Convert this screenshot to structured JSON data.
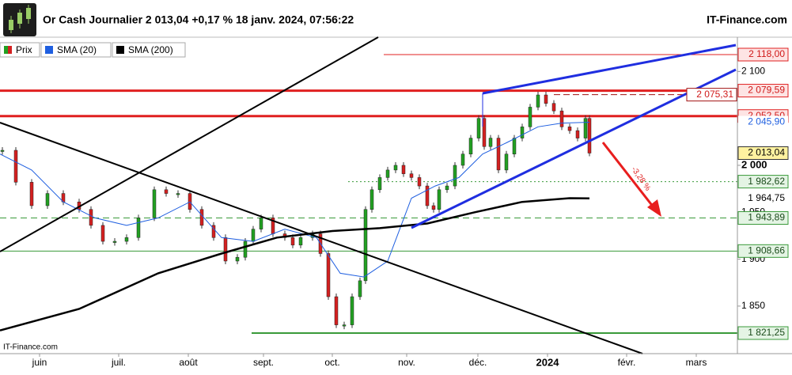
{
  "chart_data": {
    "type": "candlestick",
    "title": "Or Cash Journalier 2 013,04 +0,17 % 18 janv. 2024, 07:56:22",
    "site": "IT-Finance.com",
    "watermark": "IT-Finance.com",
    "annotation": "-3,28 %",
    "xlim": [
      0,
      233
    ],
    "ylim": [
      1799.33,
      2136.55
    ],
    "xticks": [
      {
        "value": 12.5,
        "label": "juin"
      },
      {
        "value": 37.5,
        "label": "juil."
      },
      {
        "value": 59.5,
        "label": "août"
      },
      {
        "value": 83.25,
        "label": "sept."
      },
      {
        "value": 105,
        "label": "oct."
      },
      {
        "value": 128.5,
        "label": "nov."
      },
      {
        "value": 151,
        "label": "déc."
      },
      {
        "value": 173,
        "label": "2024"
      },
      {
        "value": 198,
        "label": "févr."
      },
      {
        "value": 220,
        "label": "mars"
      }
    ],
    "yticks": [
      {
        "value": 2100,
        "label": "2 100"
      },
      {
        "value": 2000,
        "label": "2 000"
      },
      {
        "value": 1950,
        "label": "1 950"
      },
      {
        "value": 1900,
        "label": "1 900"
      },
      {
        "value": 1850,
        "label": "1 850"
      }
    ],
    "series": [
      {
        "name": "Prix",
        "color": "#22a022",
        "down_color": "#d42020",
        "last_label": "2 013,04",
        "x": [
          0.75,
          5,
          10,
          15,
          20,
          25,
          28.75,
          32.5,
          36.25,
          40,
          43.75,
          48.75,
          52.5,
          56.25,
          60,
          63.75,
          67.5,
          71.25,
          75,
          77.5,
          80,
          82.5,
          86.25,
          90,
          92.5,
          95,
          98.75,
          101.25,
          103.75,
          106.25,
          108.75,
          111.25,
          113.75,
          115.5,
          117.5,
          120,
          122.5,
          125,
          127.5,
          130,
          132.5,
          135,
          137,
          138.75,
          141.25,
          143.75,
          146.25,
          148.75,
          151.25,
          153,
          155,
          157.5,
          160,
          162.5,
          165,
          167.5,
          170,
          172.5,
          175,
          177.5,
          180,
          182.5,
          185,
          186.25
        ],
        "values": [
          2016,
          1982,
          1957,
          1970,
          1961,
          1953,
          1936,
          1919,
          1919,
          1923,
          1944,
          1974,
          1970,
          1970,
          1953,
          1936,
          1923,
          1898,
          1902,
          1919,
          1932,
          1944,
          1927,
          1923,
          1915,
          1923,
          1927,
          1906,
          1860,
          1830,
          1830,
          1860,
          1877,
          1953,
          1974,
          1987,
          1995,
          2000,
          1991,
          1987,
          1978,
          1957,
          1953,
          1974,
          1978,
          2000,
          2012,
          2029,
          2050,
          2020,
          2029,
          1995,
          2012,
          2029,
          2041,
          2062,
          2075,
          2066,
          2058,
          2041,
          2037,
          2029,
          2050,
          2013.04
        ]
      },
      {
        "name": "SMA (20)",
        "color": "#1f5fe0",
        "last_label": "2 045,90",
        "x": [
          0,
          10,
          20,
          30,
          40,
          50,
          60,
          70,
          80,
          90,
          100,
          107.5,
          115,
          122.5,
          130,
          137.5,
          145,
          152.5,
          160,
          170,
          177.5,
          186.25
        ],
        "values": [
          2012,
          1995,
          1961,
          1944,
          1936,
          1944,
          1961,
          1923,
          1919,
          1932,
          1923,
          1885,
          1881,
          1898,
          1965,
          1978,
          1987,
          2012,
          2024,
          2041,
          2045,
          2045.9
        ]
      },
      {
        "name": "SMA (200)",
        "color": "#000000",
        "last_label": "1 964,75",
        "x": [
          0,
          25,
          50,
          70,
          87.5,
          105,
          120,
          135,
          150,
          165,
          180,
          186.25
        ],
        "values": [
          1824,
          1847,
          1885,
          1906,
          1923,
          1930,
          1933,
          1938,
          1950,
          1961,
          1965,
          1964.75
        ]
      }
    ],
    "levels": [
      {
        "value": 2118,
        "label": "2 118,00",
        "color": "#e02020"
      },
      {
        "value": 2079.59,
        "label": "2 079,59",
        "color": "#e02020"
      },
      {
        "value": 2075.31,
        "label": "2 075,31",
        "color": "#a01010"
      },
      {
        "value": 2052.5,
        "label": "2 052,50",
        "color": "#e02020"
      },
      {
        "value": 1982.62,
        "label": "1 982,62",
        "color": "#3a9a3a"
      },
      {
        "value": 1943.89,
        "label": "1 943,89",
        "color": "#3a9a3a"
      },
      {
        "value": 1908.66,
        "label": "1 908,66",
        "color": "#3a9a3a"
      },
      {
        "value": 1821.25,
        "label": "1 821,25",
        "color": "#3a9a3a"
      }
    ]
  }
}
